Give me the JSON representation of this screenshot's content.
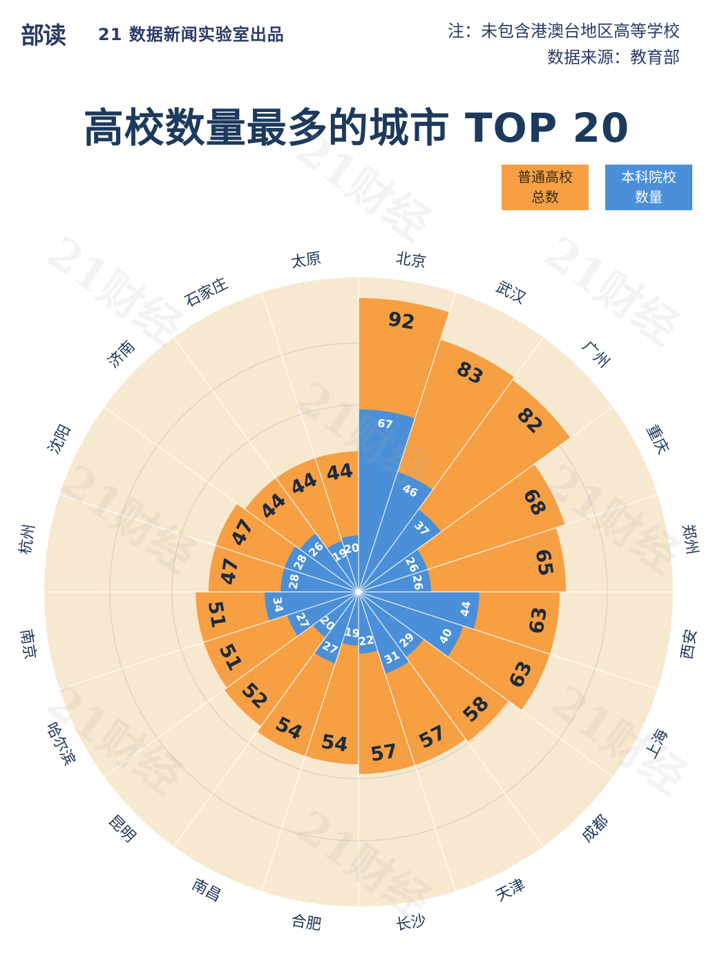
{
  "header": {
    "logo_text": "部读",
    "producer": "21 数据新闻实验室出品",
    "note_line1": "注：未包含港澳台地区高等学校",
    "note_line2": "数据来源：教育部"
  },
  "watermark_text": "21财经",
  "colors": {
    "total": "#f6a043",
    "bachelor": "#4a8fd8",
    "background_disc": "#f7e8d0",
    "title": "#1d3a5c"
  },
  "chart_data": {
    "type": "polar-bar",
    "title": "高校数量最多的城市 TOP 20",
    "legend": [
      "普通高校总数",
      "本科院校数量"
    ],
    "legend_labels": {
      "total_line1": "普通高校",
      "total_line2": "总数",
      "bachelor_line1": "本科院校",
      "bachelor_line2": "数量"
    },
    "categories": [
      "北京",
      "武汉",
      "广州",
      "重庆",
      "郑州",
      "西安",
      "上海",
      "成都",
      "天津",
      "长沙",
      "合肥",
      "南昌",
      "昆明",
      "哈尔滨",
      "南京",
      "杭州",
      "沈阳",
      "济南",
      "石家庄",
      "太原"
    ],
    "series": [
      {
        "name": "普通高校总数",
        "values": [
          92,
          83,
          82,
          68,
          65,
          63,
          63,
          58,
          57,
          57,
          54,
          54,
          52,
          51,
          51,
          47,
          47,
          44,
          44,
          44
        ]
      },
      {
        "name": "本科院校数量",
        "values": [
          67,
          46,
          37,
          26,
          26,
          44,
          40,
          29,
          31,
          22,
          19,
          27,
          20,
          27,
          34,
          28,
          28,
          26,
          19,
          20
        ]
      }
    ],
    "bar_value_order_note": "sectors run clockwise starting from 12 o'clock"
  }
}
